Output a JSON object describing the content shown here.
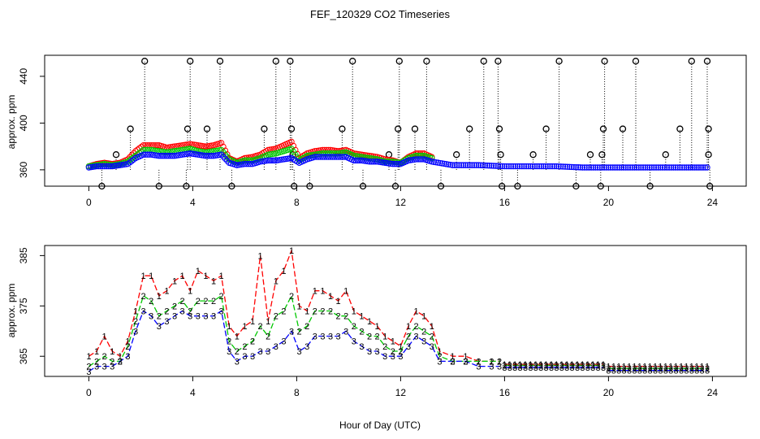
{
  "figure": {
    "title": "FEF_120329  CO2 Timeseries",
    "xlabel": "Hour of Day (UTC)"
  },
  "chart_data": [
    {
      "type": "scatter",
      "panel": "top",
      "ylabel": "approx. ppm",
      "xlim": [
        -1.7,
        25.3
      ],
      "ylim": [
        346,
        458
      ],
      "xticks": [
        0,
        4,
        8,
        12,
        16,
        20,
        24
      ],
      "yticks": [
        360,
        400,
        440
      ],
      "series_colors": [
        "#ff0000",
        "#00c800",
        "#0000ff"
      ],
      "series": [
        {
          "name": "1",
          "color": "#ff0000",
          "x": [
            0.0,
            0.3,
            0.6,
            0.9,
            1.2,
            1.5,
            1.8,
            2.1,
            2.4,
            2.7,
            3.0,
            3.3,
            3.6,
            3.9,
            4.2,
            4.5,
            4.8,
            5.1,
            5.4,
            5.7,
            6.0,
            6.3,
            6.6,
            6.9,
            7.2,
            7.5,
            7.8,
            8.1,
            8.4,
            8.7,
            9.0,
            9.3,
            9.6,
            9.9,
            10.2,
            10.5,
            10.8,
            11.1,
            11.4,
            11.7,
            12.0,
            12.3,
            12.6,
            12.9,
            13.2
          ],
          "y": [
            363,
            365,
            366,
            365,
            366,
            369,
            376,
            381,
            381,
            381,
            379,
            380,
            381,
            382,
            381,
            380,
            381,
            383,
            370,
            367,
            370,
            371,
            373,
            377,
            378,
            381,
            384,
            370,
            374,
            376,
            377,
            377,
            376,
            377,
            374,
            373,
            372,
            371,
            369,
            368,
            366,
            371,
            374,
            374,
            371
          ]
        },
        {
          "name": "2",
          "color": "#00c800",
          "x": [
            0.0,
            0.3,
            0.6,
            0.9,
            1.2,
            1.5,
            1.8,
            2.1,
            2.4,
            2.7,
            3.0,
            3.3,
            3.6,
            3.9,
            4.2,
            4.5,
            4.8,
            5.1,
            5.4,
            5.7,
            6.0,
            6.3,
            6.6,
            6.9,
            7.2,
            7.5,
            7.8,
            8.1,
            8.4,
            8.7,
            9.0,
            9.3,
            9.6,
            9.9,
            10.2,
            10.5,
            10.8,
            11.1,
            11.4,
            11.7,
            12.0,
            12.3,
            12.6,
            12.9,
            13.2
          ],
          "y": [
            363,
            364,
            365,
            364,
            365,
            367,
            372,
            377,
            377,
            376,
            375,
            376,
            377,
            378,
            376,
            375,
            376,
            377,
            369,
            366,
            368,
            368,
            370,
            373,
            374,
            376,
            378,
            368,
            372,
            373,
            374,
            374,
            374,
            375,
            372,
            371,
            370,
            369,
            367,
            367,
            366,
            370,
            372,
            372,
            370
          ]
        },
        {
          "name": "3",
          "color": "#0000ff",
          "x": [
            0.0,
            0.3,
            0.6,
            0.9,
            1.2,
            1.5,
            1.8,
            2.1,
            2.4,
            2.7,
            3.0,
            3.3,
            3.6,
            3.9,
            4.2,
            4.5,
            4.8,
            5.1,
            5.4,
            5.7,
            6.0,
            6.3,
            6.6,
            6.9,
            7.2,
            7.5,
            7.8,
            8.1,
            8.4,
            8.7,
            9.0,
            9.3,
            9.6,
            9.9,
            10.2,
            10.5,
            10.8,
            11.1,
            11.4,
            11.7,
            12.0,
            12.3,
            12.6,
            12.9,
            13.2,
            14.0,
            15.0,
            16.0,
            17.0,
            18.0,
            19.0,
            20.0,
            21.0,
            22.0,
            23.0,
            23.8
          ],
          "y": [
            362,
            363,
            363,
            363,
            364,
            365,
            370,
            373,
            373,
            372,
            372,
            372,
            373,
            374,
            373,
            372,
            372,
            373,
            366,
            364,
            365,
            365,
            367,
            368,
            368,
            369,
            370,
            366,
            369,
            371,
            371,
            371,
            371,
            371,
            368,
            368,
            367,
            367,
            366,
            365,
            365,
            368,
            369,
            369,
            367,
            364,
            364,
            363,
            363,
            363,
            362,
            362,
            362,
            362,
            362,
            362
          ]
        }
      ],
      "reference_points": {
        "color": "#000000",
        "x": [
          2.15,
          3.9,
          5.05,
          7.2,
          7.75,
          10.15,
          11.95,
          13.0,
          15.2,
          15.75,
          18.1,
          19.85,
          21.05,
          23.2,
          23.8,
          1.6,
          3.8,
          4.55,
          6.75,
          7.8,
          9.75,
          11.9,
          12.55,
          14.65,
          15.8,
          17.6,
          19.8,
          20.55,
          22.75,
          23.85,
          1.05,
          7.85,
          11.55,
          14.15,
          15.85,
          17.1,
          19.3,
          19.75,
          22.2,
          23.85,
          0.5,
          2.7,
          3.75,
          5.5,
          7.9,
          8.5,
          10.55,
          11.8,
          13.55,
          15.9,
          16.5,
          18.75,
          19.7,
          21.6,
          23.9
        ],
        "y": [
          453,
          453,
          453,
          453,
          453,
          453,
          453,
          453,
          453,
          453,
          453,
          453,
          453,
          453,
          453,
          395,
          395,
          395,
          395,
          395,
          395,
          395,
          395,
          395,
          395,
          395,
          395,
          395,
          395,
          395,
          373,
          373,
          373,
          373,
          373,
          373,
          373,
          373,
          373,
          373,
          346,
          346,
          346,
          346,
          346,
          346,
          346,
          346,
          346,
          346,
          346,
          346,
          346,
          346,
          346
        ]
      }
    },
    {
      "type": "line",
      "panel": "bottom",
      "ylabel": "approx. ppm",
      "xlim": [
        -1.7,
        25.3
      ],
      "ylim": [
        361,
        387
      ],
      "xticks": [
        0,
        4,
        8,
        12,
        16,
        20,
        24
      ],
      "yticks": [
        365,
        375,
        385
      ],
      "series": [
        {
          "name": "1",
          "color": "#ff0000",
          "x": [
            0.0,
            0.3,
            0.6,
            0.9,
            1.2,
            1.5,
            1.8,
            2.1,
            2.4,
            2.7,
            3.0,
            3.3,
            3.6,
            3.9,
            4.2,
            4.5,
            4.8,
            5.1,
            5.4,
            5.7,
            6.0,
            6.3,
            6.6,
            6.9,
            7.2,
            7.5,
            7.8,
            8.1,
            8.4,
            8.7,
            9.0,
            9.3,
            9.6,
            9.9,
            10.2,
            10.5,
            10.8,
            11.1,
            11.4,
            11.7,
            12.0,
            12.3,
            12.6,
            12.9,
            13.2,
            13.5,
            14.0,
            14.5,
            15.0,
            15.5,
            15.8
          ],
          "y": [
            365,
            366,
            369,
            366,
            365,
            368,
            374,
            381,
            381,
            377,
            378,
            380,
            381,
            378,
            382,
            381,
            380,
            381,
            371,
            369,
            371,
            372,
            385,
            372,
            380,
            382,
            386,
            375,
            374,
            378,
            378,
            377,
            376,
            378,
            374,
            373,
            372,
            371,
            369,
            368,
            367,
            371,
            374,
            373,
            371,
            366,
            365,
            365,
            364,
            364,
            364
          ]
        },
        {
          "name": "2",
          "color": "#00c800",
          "x": [
            0.0,
            0.3,
            0.6,
            0.9,
            1.2,
            1.5,
            1.8,
            2.1,
            2.4,
            2.7,
            3.0,
            3.3,
            3.6,
            3.9,
            4.2,
            4.5,
            4.8,
            5.1,
            5.4,
            5.7,
            6.0,
            6.3,
            6.6,
            6.9,
            7.2,
            7.5,
            7.8,
            8.1,
            8.4,
            8.7,
            9.0,
            9.3,
            9.6,
            9.9,
            10.2,
            10.5,
            10.8,
            11.1,
            11.4,
            11.7,
            12.0,
            12.3,
            12.6,
            12.9,
            13.2,
            13.5,
            14.0,
            14.5,
            15.0,
            15.5,
            15.8
          ],
          "y": [
            363,
            364,
            365,
            364,
            364,
            367,
            372,
            377,
            376,
            373,
            374,
            375,
            376,
            374,
            376,
            376,
            376,
            377,
            368,
            366,
            367,
            368,
            371,
            369,
            373,
            374,
            377,
            370,
            371,
            374,
            374,
            374,
            373,
            373,
            371,
            370,
            369,
            369,
            367,
            366,
            366,
            369,
            371,
            370,
            369,
            365,
            364,
            364,
            364,
            364,
            364
          ]
        },
        {
          "name": "3",
          "color": "#0000ff",
          "x": [
            0.0,
            0.3,
            0.6,
            0.9,
            1.2,
            1.5,
            1.8,
            2.1,
            2.4,
            2.7,
            3.0,
            3.3,
            3.6,
            3.9,
            4.2,
            4.5,
            4.8,
            5.1,
            5.4,
            5.7,
            6.0,
            6.3,
            6.6,
            6.9,
            7.2,
            7.5,
            7.8,
            8.1,
            8.4,
            8.7,
            9.0,
            9.3,
            9.6,
            9.9,
            10.2,
            10.5,
            10.8,
            11.1,
            11.4,
            11.7,
            12.0,
            12.3,
            12.6,
            12.9,
            13.2,
            13.5,
            14.0,
            14.5,
            15.0,
            15.5,
            15.8
          ],
          "y": [
            362,
            363,
            363,
            363,
            364,
            365,
            370,
            374,
            373,
            371,
            372,
            373,
            374,
            373,
            373,
            373,
            373,
            374,
            366,
            364,
            365,
            365,
            366,
            366,
            367,
            368,
            370,
            366,
            367,
            369,
            369,
            369,
            369,
            370,
            368,
            367,
            366,
            366,
            365,
            365,
            365,
            367,
            369,
            368,
            367,
            364,
            364,
            364,
            363,
            363,
            363
          ]
        }
      ],
      "late_segments": [
        {
          "x0": 16.0,
          "x1": 19.8,
          "y": [
            363.4,
            363.2,
            362.8
          ]
        },
        {
          "x0": 20.0,
          "x1": 23.8,
          "y": [
            363.0,
            362.6,
            362.2
          ]
        }
      ]
    }
  ]
}
